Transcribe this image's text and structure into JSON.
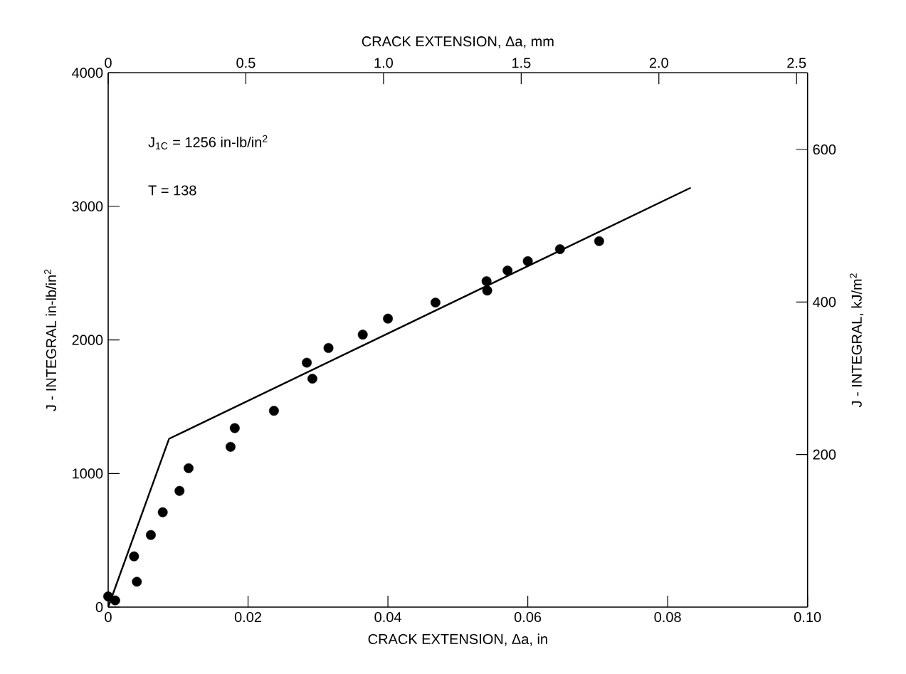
{
  "chart_data": {
    "type": "scatter",
    "xlabel": "CRACK EXTENSION, Δa,   in",
    "x2label": "CRACK EXTENSION, Δa, mm",
    "ylabel": "J - INTEGRAL  in-lb/in$^{2}$",
    "y2label": "J - INTEGRAL, kJ/m$^{2}$",
    "annotations": [
      "J$_{1C}$ = 1256 in-lb/in$^{2}$",
      "T = 138"
    ],
    "series": [
      {
        "color": "#000000",
        "marker": "circle",
        "x": [
          0,
          0.001,
          0.0037,
          0.0041,
          0.0061,
          0.0078,
          0.0102,
          0.0115,
          0.0175,
          0.0181,
          0.0237,
          0.0284,
          0.0292,
          0.0315,
          0.0364,
          0.04,
          0.0468,
          0.0541,
          0.0542,
          0.0571,
          0.06,
          0.0646,
          0.0702
        ],
        "values": [
          80,
          50,
          380,
          190,
          540,
          710,
          870,
          1040,
          1200,
          1340,
          1470,
          1830,
          1710,
          1940,
          2040,
          2160,
          2280,
          2440,
          2370,
          2520,
          2590,
          2680,
          2740
        ]
      },
      {
        "type": "line",
        "color": "#000000",
        "marker": "none",
        "line_style": "solid",
        "x": [
          0,
          0.0087,
          0.0833
        ],
        "values": [
          0,
          1260,
          3140
        ]
      }
    ],
    "xlim": [
      0,
      0.1
    ],
    "ylim": [
      0,
      4000
    ],
    "x2lim": [
      0,
      2.54
    ],
    "y2lim": [
      0,
      700.5
    ],
    "xticks": [
      0,
      0.02,
      0.04,
      0.06,
      0.08,
      {
        "value": 0.1,
        "label": "0.10"
      }
    ],
    "yticks": [
      0,
      1000,
      2000,
      3000,
      4000
    ],
    "x2ticks": [
      0,
      0.5,
      {
        "value": 1.0,
        "label": "1.0"
      },
      1.5,
      {
        "value": 2.0,
        "label": "2.0"
      },
      2.5
    ],
    "y2ticks": [
      200,
      400,
      600
    ]
  }
}
